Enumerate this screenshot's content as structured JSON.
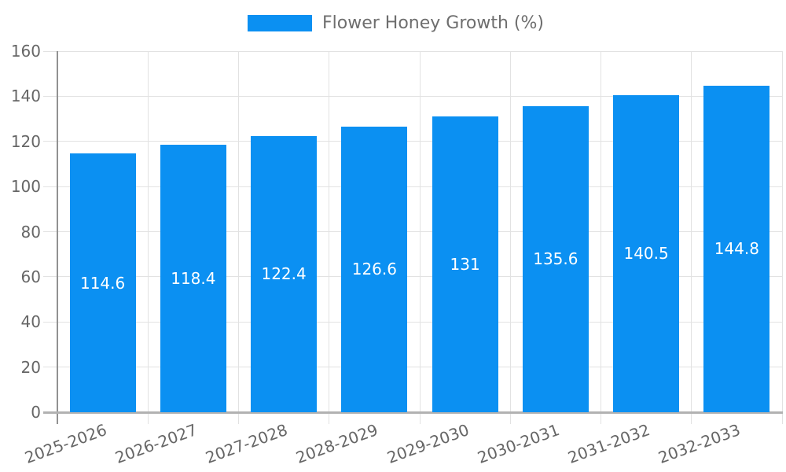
{
  "legend": {
    "label": "Flower Honey Growth (%)"
  },
  "chart_data": {
    "type": "bar",
    "title": "",
    "xlabel": "",
    "ylabel": "",
    "categories": [
      "2025-2026",
      "2026-2027",
      "2027-2028",
      "2028-2029",
      "2029-2030",
      "2030-2031",
      "2031-2032",
      "2032-2033"
    ],
    "series": [
      {
        "name": "Flower Honey Growth (%)",
        "values": [
          114.6,
          118.4,
          122.4,
          126.6,
          131,
          135.6,
          140.5,
          144.8
        ]
      }
    ],
    "value_labels": [
      "114.6",
      "118.4",
      "122.4",
      "126.6",
      "131",
      "135.6",
      "140.5",
      "144.8"
    ],
    "ylim": [
      0,
      160
    ],
    "yticks": [
      0,
      20,
      40,
      60,
      80,
      100,
      120,
      140,
      160
    ],
    "grid": true,
    "legend_position": "top-center",
    "colors": {
      "bar": "#0b90f2",
      "value_label": "#ffffff",
      "axis_text": "#666666",
      "gridline": "#e2e2e2",
      "y_axis_line": "#919191",
      "x_axis_line": "#b2b2b2"
    }
  }
}
